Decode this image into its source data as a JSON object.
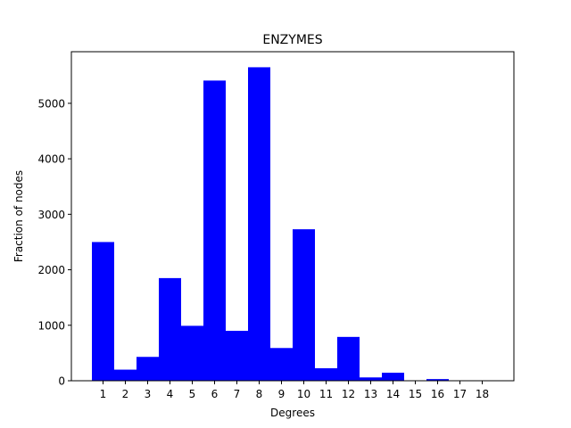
{
  "chart_data": {
    "type": "bar",
    "title": "ENZYMES",
    "xlabel": "Degrees",
    "ylabel": "Fraction of nodes",
    "categories": [
      "1",
      "2",
      "3",
      "4",
      "5",
      "6",
      "7",
      "8",
      "9",
      "10",
      "11",
      "12",
      "13",
      "14",
      "15",
      "16",
      "17",
      "18"
    ],
    "values": [
      2500,
      200,
      430,
      1850,
      990,
      5410,
      900,
      5650,
      590,
      2730,
      225,
      790,
      60,
      145,
      0,
      30,
      0,
      0
    ],
    "ylim": [
      0,
      5930
    ],
    "yticks": [
      0,
      1000,
      2000,
      3000,
      4000,
      5000
    ],
    "ytick_labels": [
      "0",
      "1000",
      "2000",
      "3000",
      "4000",
      "5000"
    ],
    "grid": false,
    "bar_color": "#0000ff"
  }
}
